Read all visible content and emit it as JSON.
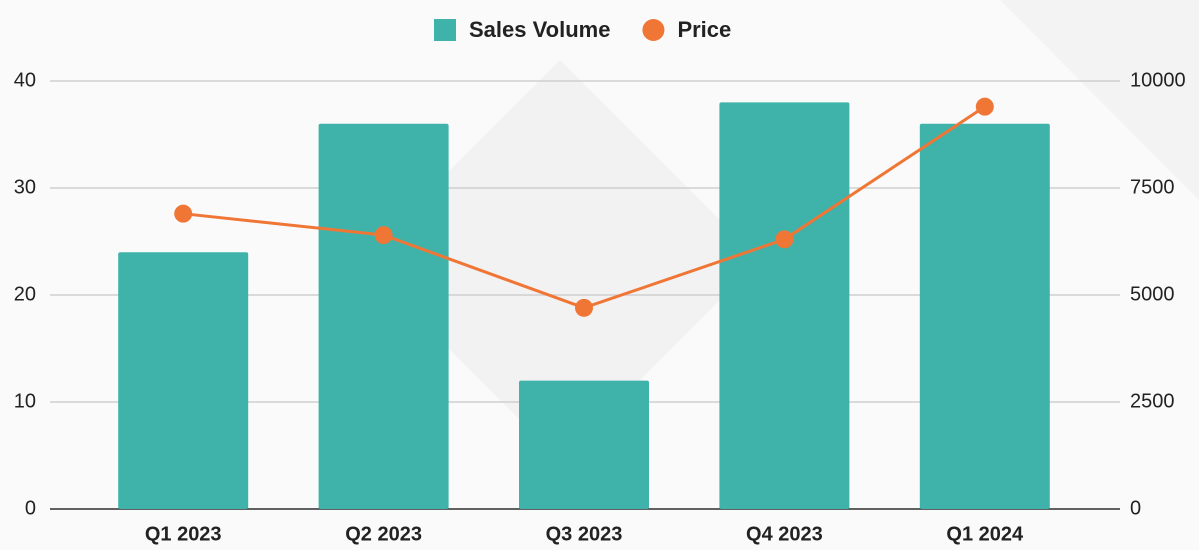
{
  "chart_data": {
    "type": "bar_line",
    "categories": [
      "Q1 2023",
      "Q2 2023",
      "Q3 2023",
      "Q4 2023",
      "Q1 2024"
    ],
    "series": [
      {
        "name": "Sales Volume",
        "type": "bar",
        "color": "#3fb3aa",
        "values": [
          24,
          36,
          12,
          38,
          36
        ]
      },
      {
        "name": "Price",
        "type": "line",
        "axis": "y2",
        "color": "#f07636",
        "values": [
          6900,
          6400,
          4700,
          6300,
          9400
        ]
      }
    ],
    "ylim": [
      0,
      40
    ],
    "yticks": [
      0,
      10,
      20,
      30,
      40
    ],
    "y2lim": [
      0,
      10000
    ],
    "y2ticks": [
      0,
      2500,
      5000,
      7500,
      10000
    ],
    "grid": true,
    "legend": "top"
  }
}
